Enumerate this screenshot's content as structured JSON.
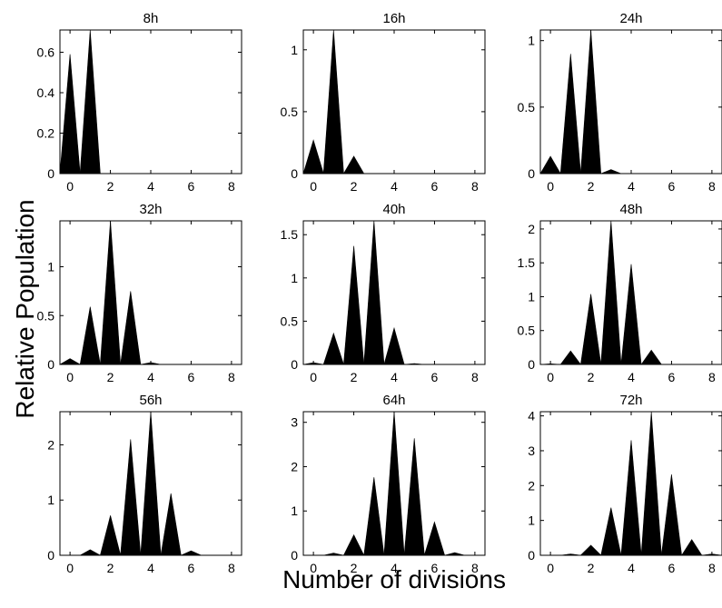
{
  "figure": {
    "ylabel": "Relative Population",
    "xlabel": "Number of divisions",
    "fill_color": "#000000"
  },
  "chart_data": [
    {
      "type": "area",
      "title": "8h",
      "x": [
        0,
        1,
        2,
        3,
        4,
        5,
        6,
        7,
        8
      ],
      "values": [
        0.59,
        0.71,
        0,
        0,
        0,
        0,
        0,
        0,
        0
      ],
      "xlim": [
        -0.5,
        8.5
      ],
      "ylim": [
        0,
        0.71
      ],
      "xticks": [
        0,
        2,
        4,
        6,
        8
      ],
      "yticks": [
        0,
        0.2,
        0.4,
        0.6
      ],
      "ytick_labels": [
        "0",
        "0.2",
        "0.4",
        "0.6"
      ]
    },
    {
      "type": "area",
      "title": "16h",
      "x": [
        0,
        1,
        2,
        3,
        4,
        5,
        6,
        7,
        8
      ],
      "values": [
        0.27,
        1.16,
        0.14,
        0,
        0,
        0,
        0,
        0,
        0
      ],
      "xlim": [
        -0.5,
        8.5
      ],
      "ylim": [
        0,
        1.16
      ],
      "xticks": [
        0,
        2,
        4,
        6,
        8
      ],
      "yticks": [
        0,
        0.5,
        1
      ],
      "ytick_labels": [
        "0",
        "0.5",
        "1"
      ]
    },
    {
      "type": "area",
      "title": "24h",
      "x": [
        0,
        1,
        2,
        3,
        4,
        5,
        6,
        7,
        8
      ],
      "values": [
        0.13,
        0.9,
        1.08,
        0.03,
        0,
        0,
        0,
        0,
        0
      ],
      "xlim": [
        -0.5,
        8.5
      ],
      "ylim": [
        0,
        1.08
      ],
      "xticks": [
        0,
        2,
        4,
        6,
        8
      ],
      "yticks": [
        0,
        0.5,
        1
      ],
      "ytick_labels": [
        "0",
        "0.5",
        "1"
      ]
    },
    {
      "type": "area",
      "title": "32h",
      "x": [
        0,
        1,
        2,
        3,
        4,
        5,
        6,
        7,
        8
      ],
      "values": [
        0.06,
        0.59,
        1.47,
        0.75,
        0.02,
        0,
        0,
        0,
        0
      ],
      "xlim": [
        -0.5,
        8.5
      ],
      "ylim": [
        0,
        1.47
      ],
      "xticks": [
        0,
        2,
        4,
        6,
        8
      ],
      "yticks": [
        0,
        0.5,
        1
      ],
      "ytick_labels": [
        "0",
        "0.5",
        "1"
      ]
    },
    {
      "type": "area",
      "title": "40h",
      "x": [
        0,
        1,
        2,
        3,
        4,
        5,
        6,
        7,
        8
      ],
      "values": [
        0.02,
        0.36,
        1.37,
        1.66,
        0.42,
        0.01,
        0,
        0,
        0
      ],
      "xlim": [
        -0.5,
        8.5
      ],
      "ylim": [
        0,
        1.66
      ],
      "xticks": [
        0,
        2,
        4,
        6,
        8
      ],
      "yticks": [
        0,
        0.5,
        1,
        1.5
      ],
      "ytick_labels": [
        "0",
        "0.5",
        "1",
        "1.5"
      ]
    },
    {
      "type": "area",
      "title": "48h",
      "x": [
        0,
        1,
        2,
        3,
        4,
        5,
        6,
        7,
        8
      ],
      "values": [
        0.01,
        0.2,
        1.04,
        2.12,
        1.48,
        0.21,
        0,
        0,
        0
      ],
      "xlim": [
        -0.5,
        8.5
      ],
      "ylim": [
        0,
        2.12
      ],
      "xticks": [
        0,
        2,
        4,
        6,
        8
      ],
      "yticks": [
        0,
        0.5,
        1,
        1.5,
        2
      ],
      "ytick_labels": [
        "0",
        "0.5",
        "1",
        "1.5",
        "2"
      ]
    },
    {
      "type": "area",
      "title": "56h",
      "x": [
        0,
        1,
        2,
        3,
        4,
        5,
        6,
        7,
        8
      ],
      "values": [
        0,
        0.1,
        0.72,
        2.1,
        2.6,
        1.12,
        0.08,
        0,
        0
      ],
      "xlim": [
        -0.5,
        8.5
      ],
      "ylim": [
        0,
        2.6
      ],
      "xticks": [
        0,
        2,
        4,
        6,
        8
      ],
      "yticks": [
        0,
        1,
        2
      ],
      "ytick_labels": [
        "0",
        "1",
        "2"
      ]
    },
    {
      "type": "area",
      "title": "64h",
      "x": [
        0,
        1,
        2,
        3,
        4,
        5,
        6,
        7,
        8
      ],
      "values": [
        0,
        0.05,
        0.46,
        1.76,
        3.24,
        2.64,
        0.75,
        0.06,
        0
      ],
      "xlim": [
        -0.5,
        8.5
      ],
      "ylim": [
        0,
        3.24
      ],
      "xticks": [
        0,
        2,
        4,
        6,
        8
      ],
      "yticks": [
        0,
        1,
        2,
        3
      ],
      "ytick_labels": [
        "0",
        "1",
        "2",
        "3"
      ]
    },
    {
      "type": "area",
      "title": "72h",
      "x": [
        0,
        1,
        2,
        3,
        4,
        5,
        6,
        7,
        8
      ],
      "values": [
        0,
        0.04,
        0.29,
        1.37,
        3.3,
        4.12,
        2.32,
        0.45,
        0.04
      ],
      "xlim": [
        -0.5,
        8.5
      ],
      "ylim": [
        0,
        4.12
      ],
      "xticks": [
        0,
        2,
        4,
        6,
        8
      ],
      "yticks": [
        0,
        1,
        2,
        3,
        4
      ],
      "ytick_labels": [
        "0",
        "1",
        "2",
        "3",
        "4"
      ]
    }
  ]
}
